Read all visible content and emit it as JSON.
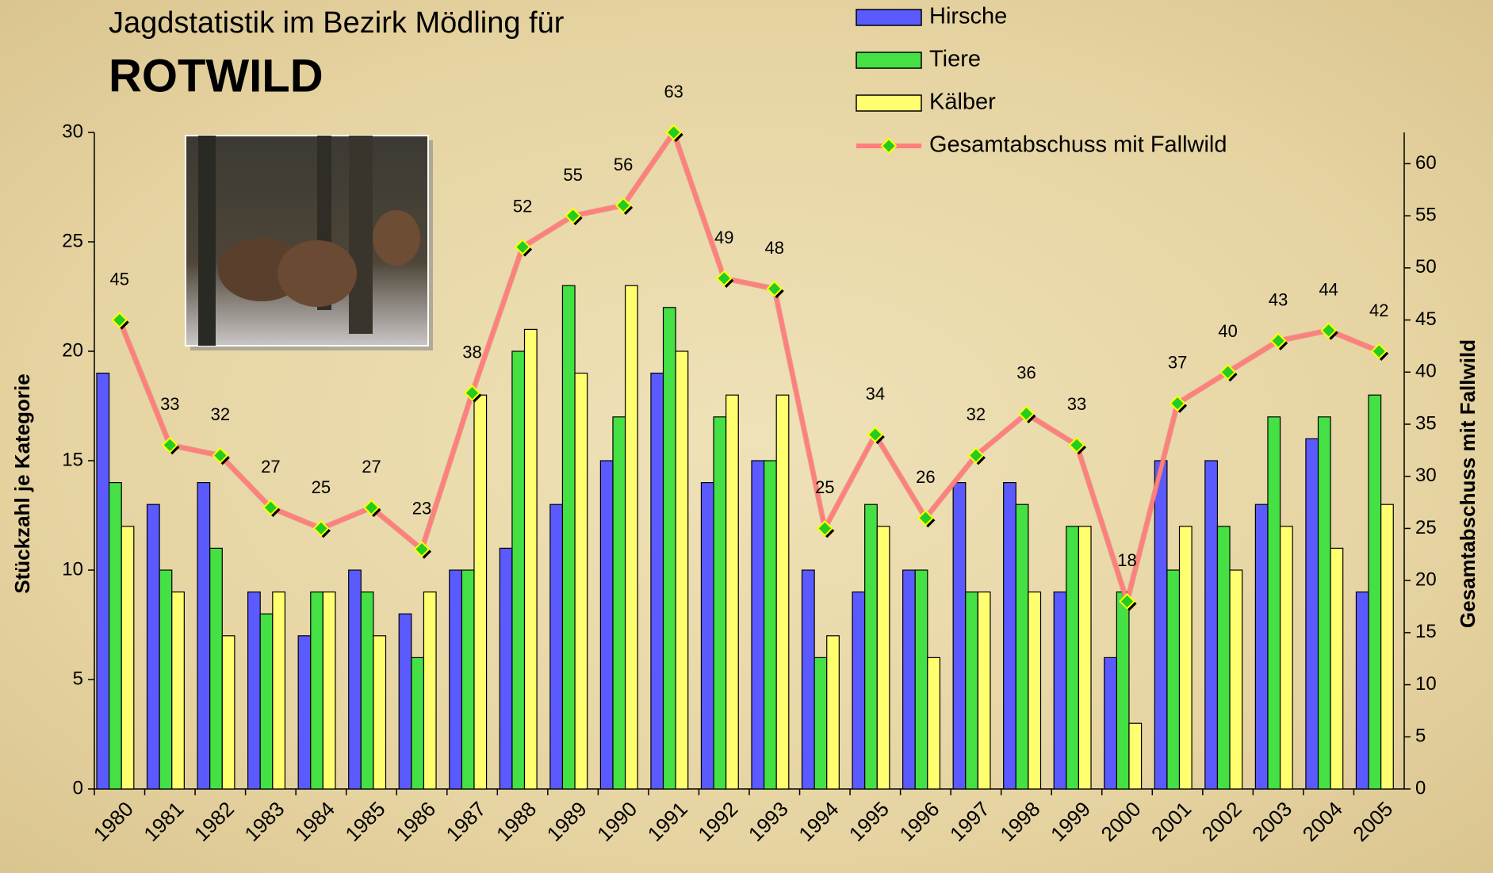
{
  "chart_data": {
    "type": "bar",
    "title": "Jagdstatistik im Bezirk Mödling für",
    "subtitle": "ROTWILD",
    "y_label": "Stückzahl je Kategorie",
    "y2_label": "Gesamtabschuss mit Fallwild",
    "categories": [
      "1980",
      "1981",
      "1982",
      "1983",
      "1984",
      "1985",
      "1986",
      "1987",
      "1988",
      "1989",
      "1990",
      "1991",
      "1992",
      "1993",
      "1994",
      "1995",
      "1996",
      "1997",
      "1998",
      "1999",
      "2000",
      "2001",
      "2002",
      "2003",
      "2004",
      "2005"
    ],
    "ylim": [
      0,
      30
    ],
    "yticks": [
      0,
      5,
      10,
      15,
      20,
      25,
      30
    ],
    "y2lim": [
      0,
      63
    ],
    "y2ticks": [
      0,
      5,
      10,
      15,
      20,
      25,
      30,
      35,
      40,
      45,
      50,
      55,
      60
    ],
    "series": [
      {
        "name": "Hirsche",
        "color": "#5a5aff",
        "values": [
          19,
          13,
          14,
          9,
          7,
          10,
          8,
          10,
          11,
          13,
          15,
          19,
          14,
          15,
          10,
          9,
          10,
          14,
          14,
          9,
          6,
          15,
          15,
          13,
          16,
          9
        ]
      },
      {
        "name": "Tiere",
        "color": "#44e044",
        "values": [
          14,
          10,
          11,
          8,
          9,
          9,
          6,
          10,
          20,
          23,
          17,
          22,
          17,
          15,
          6,
          13,
          10,
          9,
          13,
          12,
          9,
          10,
          12,
          17,
          17,
          18
        ]
      },
      {
        "name": "Kälber",
        "color": "#ffff70",
        "values": [
          12,
          9,
          7,
          9,
          9,
          7,
          9,
          18,
          21,
          19,
          23,
          20,
          18,
          18,
          7,
          12,
          6,
          9,
          9,
          12,
          3,
          12,
          10,
          12,
          11,
          13
        ]
      },
      {
        "name": "Gesamtabschuss mit Fallwild",
        "type": "line",
        "axis": "y2",
        "color": "#ff7f7f",
        "values": [
          45,
          33,
          32,
          27,
          25,
          27,
          23,
          38,
          52,
          55,
          56,
          63,
          49,
          48,
          25,
          34,
          26,
          32,
          36,
          33,
          18,
          37,
          40,
          43,
          44,
          42
        ]
      }
    ]
  }
}
